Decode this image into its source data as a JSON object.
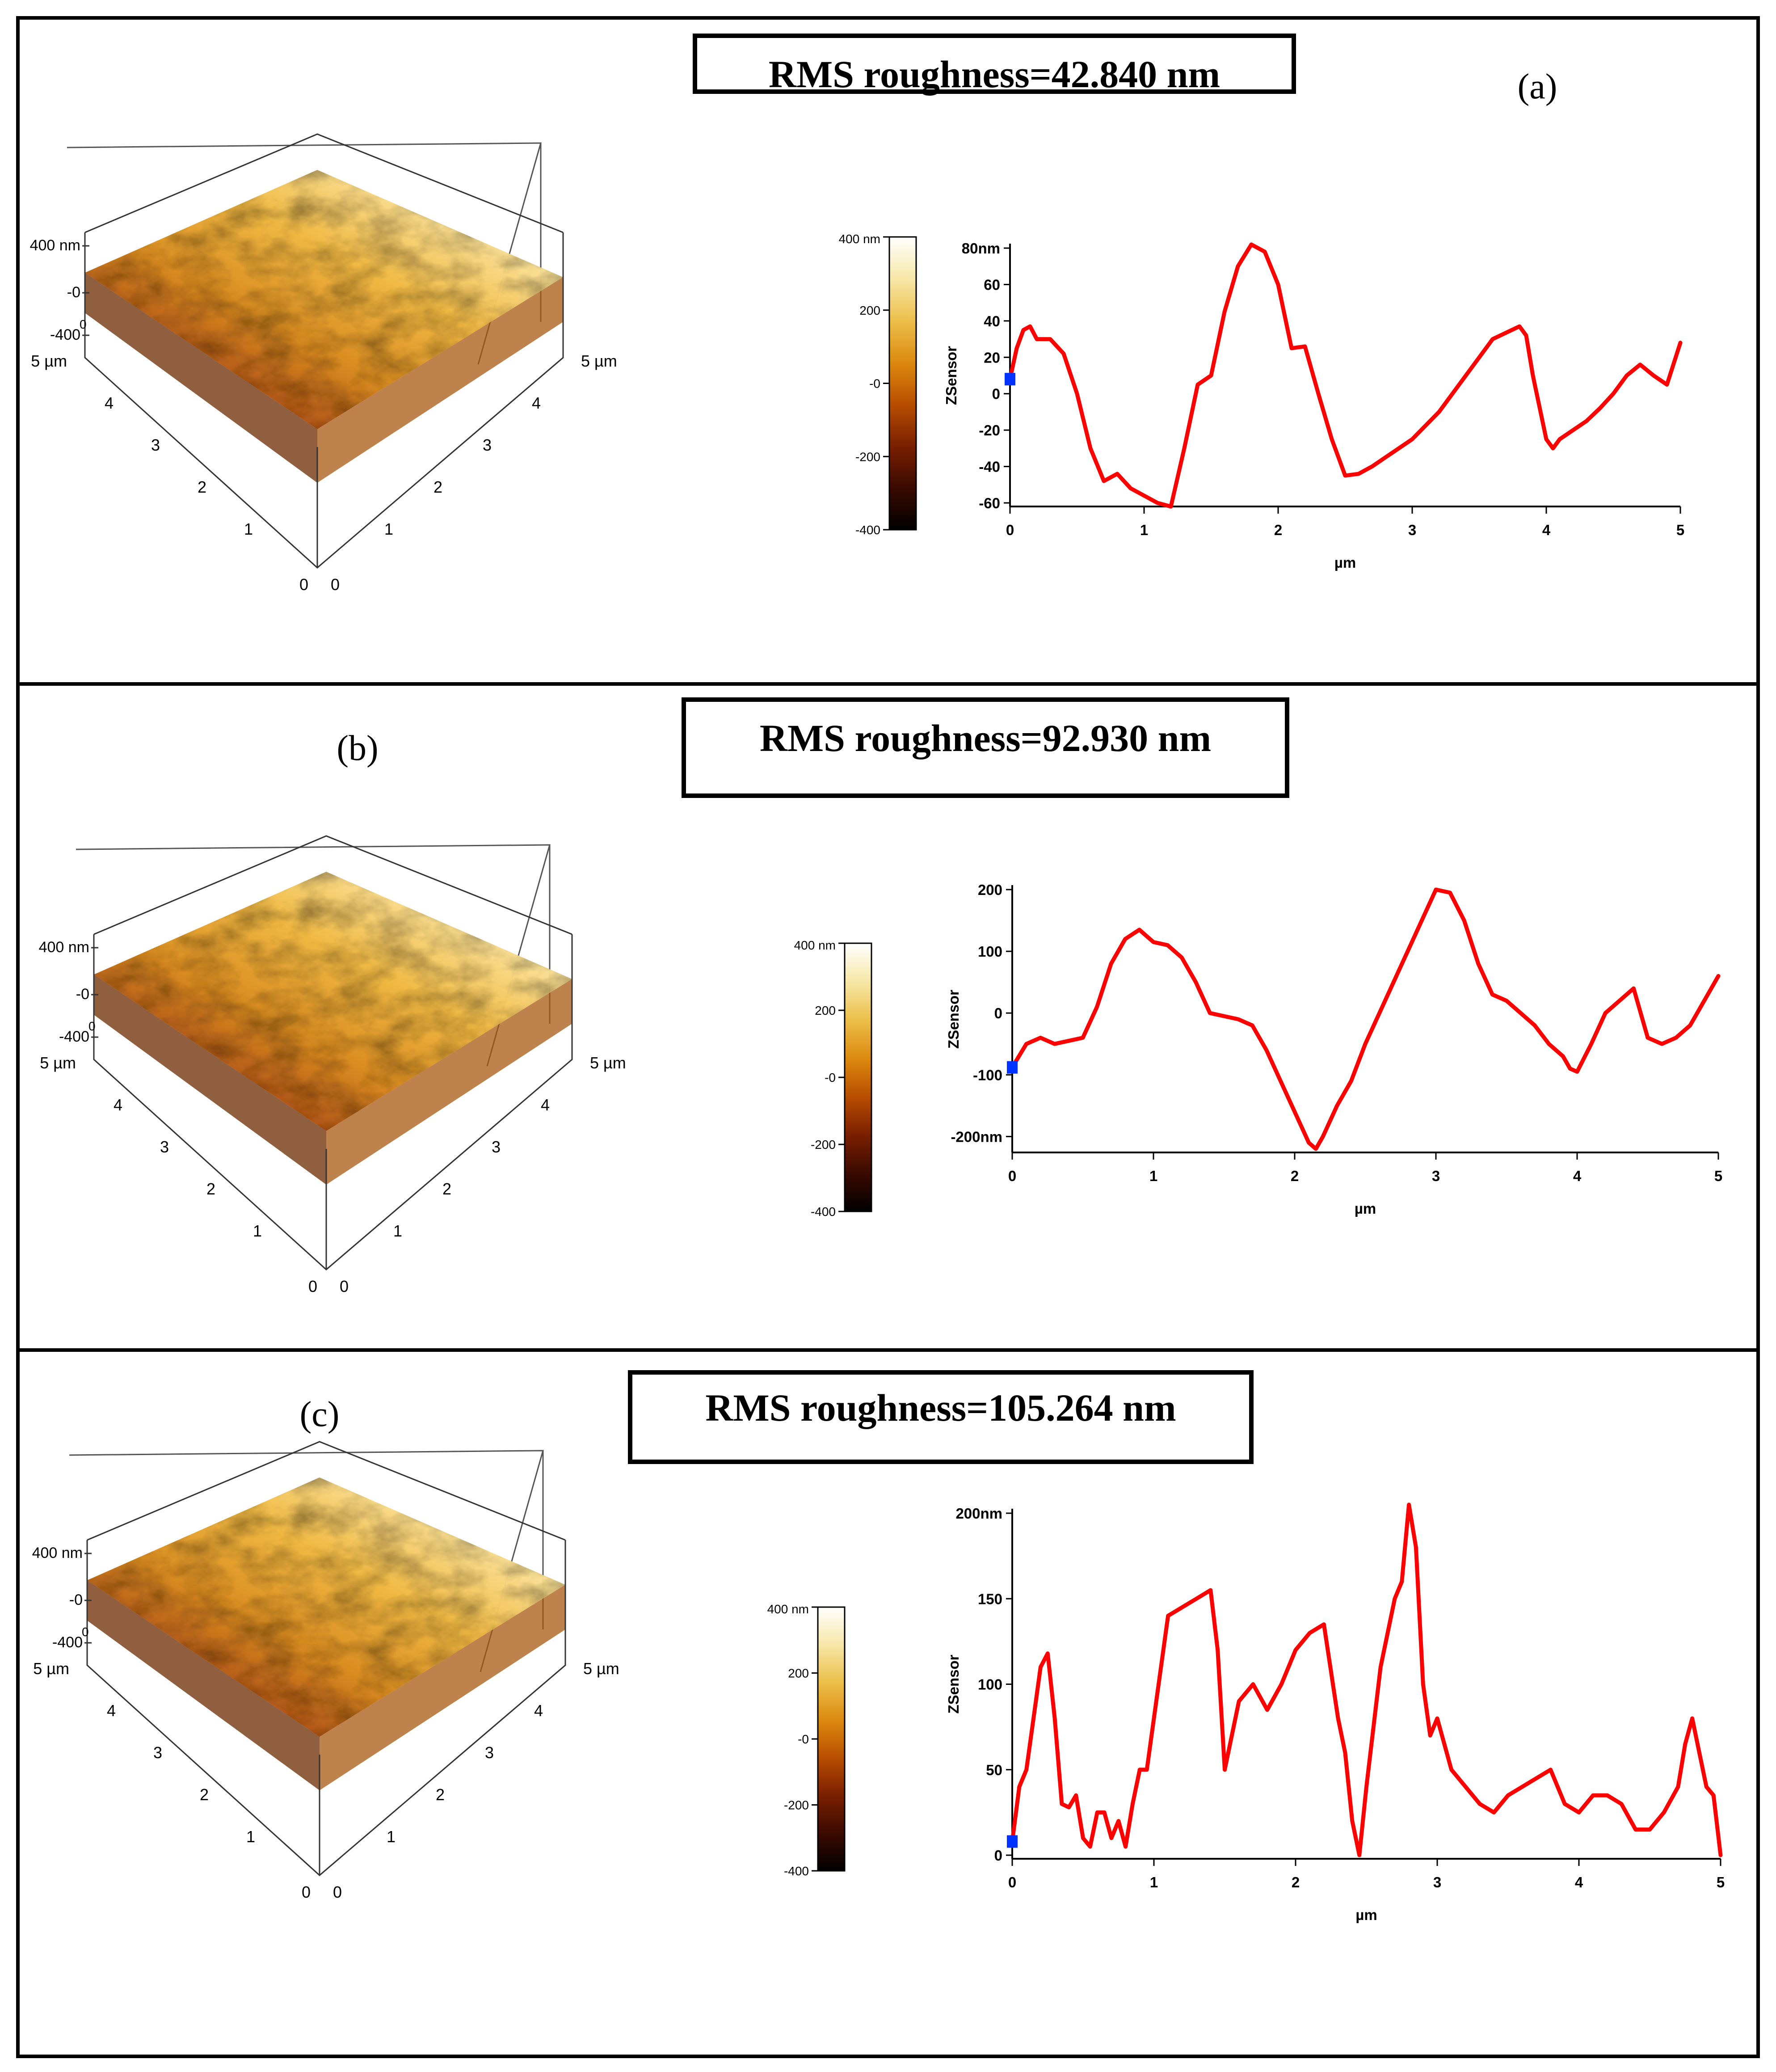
{
  "figure": {
    "colorbar_gradient": [
      "#000000",
      "#3a0a00",
      "#7a1f00",
      "#b84e00",
      "#dc8a10",
      "#ecbf4a",
      "#f6e7a8",
      "#ffffff"
    ],
    "surface_colors": [
      "#5a1a00",
      "#a64410",
      "#d98a1c",
      "#f0b840",
      "#fbe39a",
      "#fff6d6"
    ]
  },
  "panels": [
    {
      "label": "(a)",
      "rms_text": "RMS roughness=42.840 nm",
      "surface": {
        "z_tick_labels": [
          "400 nm",
          "-0",
          "-400"
        ],
        "left_axis_labels": [
          "5 µm",
          "4",
          "3",
          "2",
          "1",
          "0"
        ],
        "right_axis_labels": [
          "0",
          "1",
          "2",
          "3",
          "4",
          "5 µm"
        ],
        "corner_zero": "0"
      },
      "colorbar": {
        "tick_labels": [
          "400 nm",
          "200",
          "-0",
          "-200",
          "-400"
        ]
      },
      "chart_data": {
        "type": "line",
        "title": "",
        "xlabel": "µm",
        "ylabel": "ZSensor",
        "xlim": [
          0,
          5
        ],
        "ylim": [
          -60,
          80
        ],
        "x_ticks": [
          0,
          1,
          2,
          3,
          4,
          5
        ],
        "x_tick_labels": [
          "0",
          "1",
          "2",
          "3",
          "4",
          "5"
        ],
        "y_ticks": [
          -60,
          -40,
          -20,
          0,
          20,
          40,
          60,
          80
        ],
        "y_tick_labels": [
          "-60",
          "-40",
          "-20",
          "0",
          "20",
          "40",
          "60",
          "80nm"
        ],
        "line_color": "#ff0000",
        "marker_color": "#0033ff",
        "marker": {
          "x": 0,
          "y": 8
        },
        "series": [
          {
            "name": "ZSensor profile",
            "x": [
              0,
              0.05,
              0.1,
              0.15,
              0.2,
              0.3,
              0.4,
              0.5,
              0.6,
              0.7,
              0.8,
              0.9,
              1.0,
              1.1,
              1.2,
              1.3,
              1.4,
              1.5,
              1.6,
              1.7,
              1.8,
              1.9,
              2.0,
              2.1,
              2.2,
              2.3,
              2.4,
              2.5,
              2.6,
              2.7,
              2.8,
              2.9,
              3.0,
              3.2,
              3.4,
              3.6,
              3.8,
              3.85,
              3.9,
              4.0,
              4.05,
              4.1,
              4.2,
              4.3,
              4.4,
              4.5,
              4.6,
              4.7,
              4.8,
              4.9,
              5.0
            ],
            "values": [
              8,
              25,
              35,
              37,
              30,
              30,
              22,
              0,
              -30,
              -48,
              -44,
              -52,
              -56,
              -60,
              -62,
              -30,
              5,
              10,
              45,
              70,
              82,
              78,
              60,
              25,
              26,
              0,
              -25,
              -45,
              -44,
              -40,
              -35,
              -30,
              -25,
              -10,
              10,
              30,
              37,
              32,
              10,
              -25,
              -30,
              -25,
              -20,
              -15,
              -8,
              0,
              10,
              16,
              10,
              5,
              28
            ]
          }
        ]
      }
    },
    {
      "label": "(b)",
      "rms_text": "RMS roughness=92.930 nm",
      "surface": {
        "z_tick_labels": [
          "400 nm",
          "-0",
          "-400"
        ],
        "left_axis_labels": [
          "5 µm",
          "4",
          "3",
          "2",
          "1",
          "0"
        ],
        "right_axis_labels": [
          "0",
          "1",
          "2",
          "3",
          "4",
          "5 µm"
        ],
        "corner_zero": "0"
      },
      "colorbar": {
        "tick_labels": [
          "400 nm",
          "200",
          "-0",
          "-200",
          "-400"
        ]
      },
      "chart_data": {
        "type": "line",
        "title": "",
        "xlabel": "µm",
        "ylabel": "ZSensor",
        "xlim": [
          0,
          5
        ],
        "ylim": [
          -220,
          200
        ],
        "x_ticks": [
          0,
          1,
          2,
          3,
          4,
          5
        ],
        "x_tick_labels": [
          "0",
          "1",
          "2",
          "3",
          "4",
          "5"
        ],
        "y_ticks": [
          -200,
          -100,
          0,
          100,
          200
        ],
        "y_tick_labels": [
          "-200nm",
          "-100",
          "0",
          "100",
          "200"
        ],
        "line_color": "#ff0000",
        "marker_color": "#0033ff",
        "marker": {
          "x": 0,
          "y": -88
        },
        "series": [
          {
            "name": "ZSensor profile",
            "x": [
              0,
              0.1,
              0.2,
              0.3,
              0.4,
              0.5,
              0.6,
              0.7,
              0.8,
              0.9,
              1.0,
              1.1,
              1.2,
              1.3,
              1.4,
              1.5,
              1.6,
              1.7,
              1.8,
              1.9,
              2.0,
              2.1,
              2.15,
              2.2,
              2.3,
              2.4,
              2.5,
              2.6,
              2.7,
              2.8,
              2.9,
              3.0,
              3.1,
              3.2,
              3.3,
              3.4,
              3.5,
              3.6,
              3.7,
              3.8,
              3.9,
              3.95,
              4.0,
              4.1,
              4.2,
              4.3,
              4.4,
              4.5,
              4.6,
              4.7,
              4.8,
              4.9,
              5.0
            ],
            "values": [
              -88,
              -50,
              -40,
              -50,
              -45,
              -40,
              10,
              80,
              120,
              135,
              115,
              110,
              90,
              50,
              0,
              -5,
              -10,
              -20,
              -60,
              -110,
              -160,
              -210,
              -220,
              -200,
              -150,
              -110,
              -50,
              0,
              50,
              100,
              150,
              200,
              195,
              150,
              80,
              30,
              20,
              0,
              -20,
              -50,
              -70,
              -90,
              -95,
              -50,
              0,
              20,
              40,
              -40,
              -50,
              -40,
              -20,
              20,
              60
            ]
          }
        ]
      }
    },
    {
      "label": "(c)",
      "rms_text": "RMS roughness=105.264 nm",
      "surface": {
        "z_tick_labels": [
          "400 nm",
          "-0",
          "-400"
        ],
        "left_axis_labels": [
          "5 µm",
          "4",
          "3",
          "2",
          "1",
          "0"
        ],
        "right_axis_labels": [
          "0",
          "1",
          "2",
          "3",
          "4",
          "5 µm"
        ],
        "corner_zero": "0"
      },
      "colorbar": {
        "tick_labels": [
          "400 nm",
          "200",
          "-0",
          "-200",
          "-400"
        ]
      },
      "chart_data": {
        "type": "line",
        "title": "",
        "xlabel": "µm",
        "ylabel": "ZSensor",
        "xlim": [
          0,
          5
        ],
        "ylim": [
          0,
          200
        ],
        "x_ticks": [
          0,
          1,
          2,
          3,
          4,
          5
        ],
        "x_tick_labels": [
          "0",
          "1",
          "2",
          "3",
          "4",
          "5"
        ],
        "y_ticks": [
          0,
          50,
          100,
          150,
          200
        ],
        "y_tick_labels": [
          "0",
          "50",
          "100",
          "150",
          "200nm"
        ],
        "line_color": "#ff0000",
        "marker_color": "#0033ff",
        "marker": {
          "x": 0,
          "y": 8
        },
        "series": [
          {
            "name": "ZSensor profile",
            "x": [
              0,
              0.05,
              0.1,
              0.15,
              0.2,
              0.25,
              0.3,
              0.35,
              0.4,
              0.45,
              0.5,
              0.55,
              0.6,
              0.65,
              0.7,
              0.75,
              0.8,
              0.85,
              0.9,
              0.95,
              1.0,
              1.1,
              1.2,
              1.3,
              1.4,
              1.45,
              1.5,
              1.6,
              1.7,
              1.8,
              1.9,
              2.0,
              2.1,
              2.2,
              2.3,
              2.35,
              2.4,
              2.45,
              2.5,
              2.6,
              2.7,
              2.75,
              2.8,
              2.85,
              2.9,
              2.95,
              3.0,
              3.1,
              3.2,
              3.3,
              3.4,
              3.5,
              3.6,
              3.7,
              3.8,
              3.9,
              4.0,
              4.1,
              4.2,
              4.3,
              4.4,
              4.5,
              4.6,
              4.7,
              4.75,
              4.8,
              4.85,
              4.9,
              4.95,
              5.0
            ],
            "values": [
              8,
              40,
              50,
              80,
              110,
              118,
              80,
              30,
              28,
              35,
              10,
              5,
              25,
              25,
              10,
              20,
              5,
              30,
              50,
              50,
              80,
              140,
              145,
              150,
              155,
              120,
              50,
              90,
              100,
              85,
              100,
              120,
              130,
              135,
              80,
              60,
              20,
              0,
              40,
              110,
              150,
              160,
              205,
              180,
              100,
              70,
              80,
              50,
              40,
              30,
              25,
              35,
              40,
              45,
              50,
              30,
              25,
              35,
              35,
              30,
              15,
              15,
              25,
              40,
              65,
              80,
              60,
              40,
              35,
              0
            ]
          }
        ]
      }
    }
  ]
}
